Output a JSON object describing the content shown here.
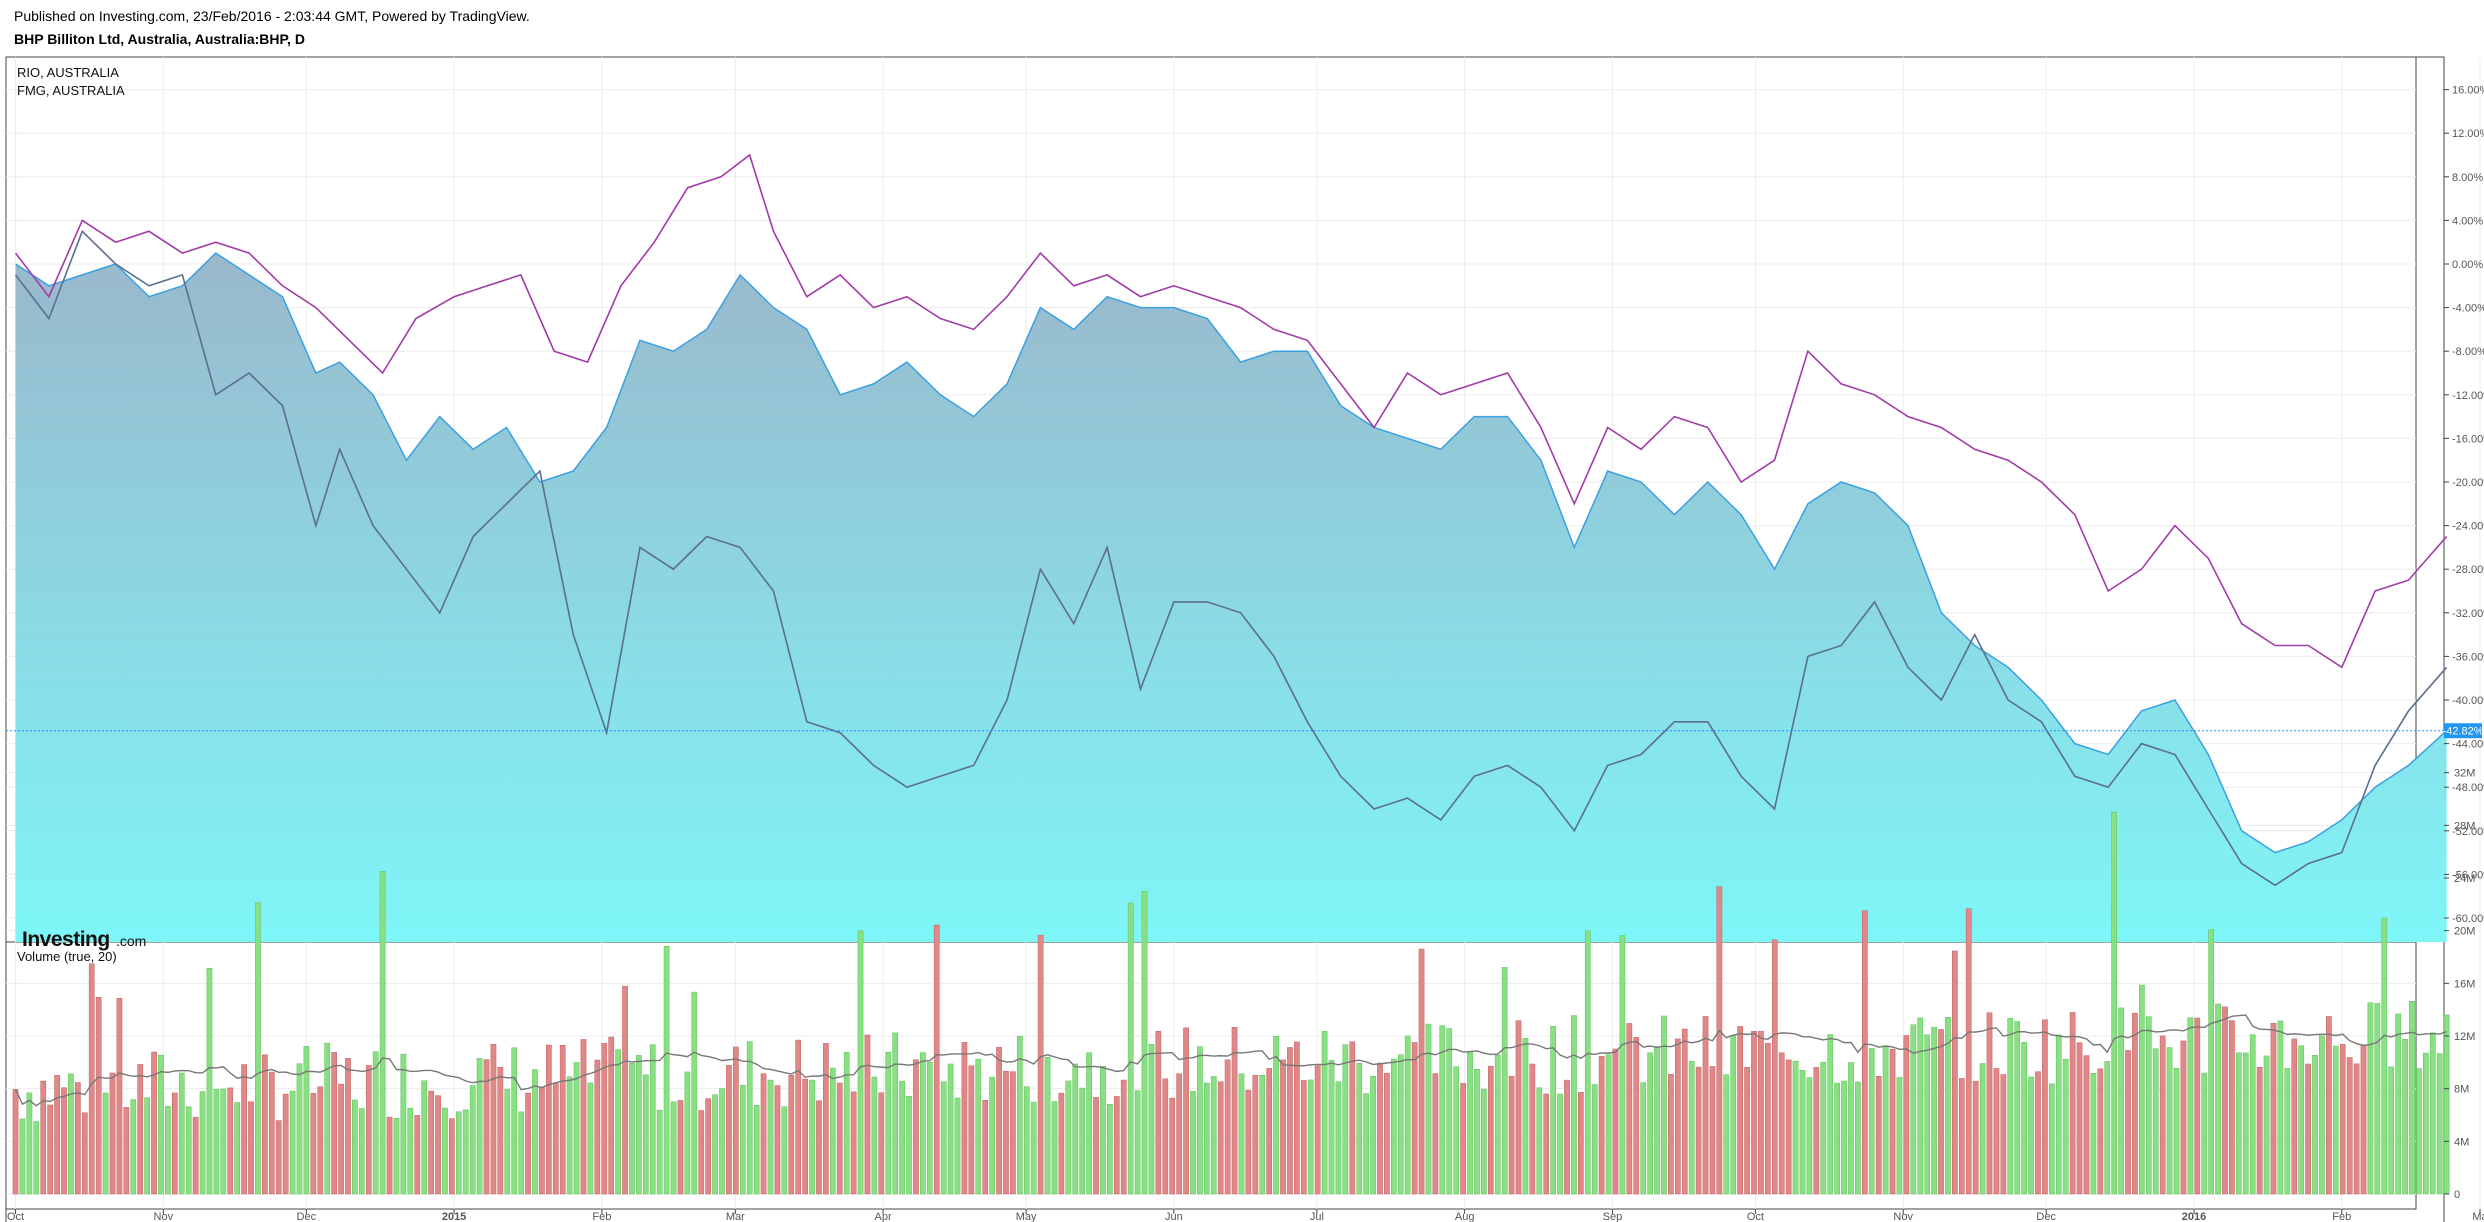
{
  "header": {
    "published": "Published on Investing.com, 23/Feb/2016 - 2:03:44 GMT, Powered by TradingView.",
    "symbol": "BHP Billiton Ltd, Australia, Australia:BHP, D"
  },
  "logo": {
    "main": "Investing",
    "suffix": ".com"
  },
  "price_panel": {
    "legend": [
      "RIO, AUSTRALIA",
      "FMG, AUSTRALIA"
    ],
    "y_ticks": [
      "16.00%",
      "12.00%",
      "8.00%",
      "4.00%",
      "0.00%",
      "-4.00%",
      "-8.00%",
      "-12.00%",
      "-16.00%",
      "-20.00%",
      "-24.00%",
      "-28.00%",
      "-32.00%",
      "-36.00%",
      "-40.00%",
      "-44.00%",
      "-48.00%",
      "-52.00%",
      "-56.00%",
      "-60.00%"
    ],
    "last_value_label": "-42.82%"
  },
  "volume_panel": {
    "title": "Volume (true, 20)",
    "y_ticks": [
      "32M",
      "28M",
      "24M",
      "20M",
      "16M",
      "12M",
      "8M",
      "4M",
      "0"
    ]
  },
  "x_ticks": [
    "Oct",
    "Nov",
    "Dec",
    "2015",
    "Feb",
    "Mar",
    "Apr",
    "May",
    "Jun",
    "Jul",
    "Aug",
    "Sep",
    "Oct",
    "Nov",
    "Dec",
    "2016",
    "Feb",
    "Ma"
  ],
  "colors": {
    "area_line": "#3aa0e0",
    "area_top": "#9ab8cc",
    "area_bottom": "#7ef6f8",
    "rio": "#a23aa8",
    "fmg": "#5a6f8c",
    "vol_up": "#88e082",
    "vol_down": "#e08888",
    "vol_ma": "#777777",
    "grid": "#ececec",
    "price_line": "#2196f3"
  },
  "chart_data": [
    {
      "type": "area",
      "yunit": "%",
      "ylim": [
        -62,
        18
      ],
      "x": [
        "2014-10-01",
        "2014-11-01",
        "2014-12-01",
        "2015-01-01",
        "2015-02-01",
        "2015-03-01",
        "2015-04-01",
        "2015-05-01",
        "2015-06-01",
        "2015-07-01",
        "2015-08-01",
        "2015-09-01",
        "2015-10-01",
        "2015-11-01",
        "2015-12-01",
        "2016-01-01",
        "2016-02-01",
        "2016-03-01"
      ],
      "series": [
        {
          "name": "",
          "points": [
            [
              "2014-10-01",
              0
            ],
            [
              "2014-10-08",
              -2
            ],
            [
              "2014-10-15",
              -1
            ],
            [
              "2014-10-22",
              0
            ],
            [
              "2014-10-29",
              -3
            ],
            [
              "2014-11-05",
              -2
            ],
            [
              "2014-11-12",
              1
            ],
            [
              "2014-11-19",
              -1
            ],
            [
              "2014-11-26",
              -3
            ],
            [
              "2014-12-03",
              -10
            ],
            [
              "2014-12-08",
              -9
            ],
            [
              "2014-12-15",
              -12
            ],
            [
              "2014-12-22",
              -18
            ],
            [
              "2014-12-29",
              -14
            ],
            [
              "2015-01-05",
              -17
            ],
            [
              "2015-01-12",
              -15
            ],
            [
              "2015-01-19",
              -20
            ],
            [
              "2015-01-26",
              -19
            ],
            [
              "2015-02-02",
              -15
            ],
            [
              "2015-02-09",
              -7
            ],
            [
              "2015-02-16",
              -8
            ],
            [
              "2015-02-23",
              -6
            ],
            [
              "2015-03-02",
              -1
            ],
            [
              "2015-03-09",
              -4
            ],
            [
              "2015-03-16",
              -6
            ],
            [
              "2015-03-23",
              -12
            ],
            [
              "2015-03-30",
              -11
            ],
            [
              "2015-04-06",
              -9
            ],
            [
              "2015-04-13",
              -12
            ],
            [
              "2015-04-20",
              -14
            ],
            [
              "2015-04-27",
              -11
            ],
            [
              "2015-05-04",
              -4
            ],
            [
              "2015-05-11",
              -6
            ],
            [
              "2015-05-18",
              -3
            ],
            [
              "2015-05-25",
              -4
            ],
            [
              "2015-06-01",
              -4
            ],
            [
              "2015-06-08",
              -5
            ],
            [
              "2015-06-15",
              -9
            ],
            [
              "2015-06-22",
              -8
            ],
            [
              "2015-06-29",
              -8
            ],
            [
              "2015-07-06",
              -13
            ],
            [
              "2015-07-13",
              -15
            ],
            [
              "2015-07-20",
              -16
            ],
            [
              "2015-07-27",
              -17
            ],
            [
              "2015-08-03",
              -14
            ],
            [
              "2015-08-10",
              -14
            ],
            [
              "2015-08-17",
              -18
            ],
            [
              "2015-08-24",
              -26
            ],
            [
              "2015-08-31",
              -19
            ],
            [
              "2015-09-07",
              -20
            ],
            [
              "2015-09-14",
              -23
            ],
            [
              "2015-09-21",
              -20
            ],
            [
              "2015-09-28",
              -23
            ],
            [
              "2015-10-05",
              -28
            ],
            [
              "2015-10-12",
              -22
            ],
            [
              "2015-10-19",
              -20
            ],
            [
              "2015-10-26",
              -21
            ],
            [
              "2015-11-02",
              -24
            ],
            [
              "2015-11-09",
              -32
            ],
            [
              "2015-11-16",
              -35
            ],
            [
              "2015-11-23",
              -37
            ],
            [
              "2015-11-30",
              -40
            ],
            [
              "2015-12-07",
              -44
            ],
            [
              "2015-12-14",
              -45
            ],
            [
              "2015-12-21",
              -41
            ],
            [
              "2015-12-28",
              -40
            ],
            [
              "2016-01-04",
              -45
            ],
            [
              "2016-01-11",
              -52
            ],
            [
              "2016-01-18",
              -54
            ],
            [
              "2016-01-25",
              -53
            ],
            [
              "2016-02-01",
              -51
            ],
            [
              "2016-02-08",
              -48
            ],
            [
              "2016-02-15",
              -46
            ],
            [
              "2016-02-23",
              -42.82
            ]
          ]
        },
        {
          "name": "RIO, AUSTRALIA",
          "points": [
            [
              "2014-10-01",
              1
            ],
            [
              "2014-10-08",
              -3
            ],
            [
              "2014-10-15",
              4
            ],
            [
              "2014-10-22",
              2
            ],
            [
              "2014-10-29",
              3
            ],
            [
              "2014-11-05",
              1
            ],
            [
              "2014-11-12",
              2
            ],
            [
              "2014-11-19",
              1
            ],
            [
              "2014-11-26",
              -2
            ],
            [
              "2014-12-03",
              -4
            ],
            [
              "2014-12-10",
              -7
            ],
            [
              "2014-12-17",
              -10
            ],
            [
              "2014-12-24",
              -5
            ],
            [
              "2015-01-01",
              -3
            ],
            [
              "2015-01-08",
              -2
            ],
            [
              "2015-01-15",
              -1
            ],
            [
              "2015-01-22",
              -8
            ],
            [
              "2015-01-29",
              -9
            ],
            [
              "2015-02-05",
              -2
            ],
            [
              "2015-02-12",
              2
            ],
            [
              "2015-02-19",
              7
            ],
            [
              "2015-02-26",
              8
            ],
            [
              "2015-03-04",
              10
            ],
            [
              "2015-03-09",
              3
            ],
            [
              "2015-03-16",
              -3
            ],
            [
              "2015-03-23",
              -1
            ],
            [
              "2015-03-30",
              -4
            ],
            [
              "2015-04-06",
              -3
            ],
            [
              "2015-04-13",
              -5
            ],
            [
              "2015-04-20",
              -6
            ],
            [
              "2015-04-27",
              -3
            ],
            [
              "2015-05-04",
              1
            ],
            [
              "2015-05-11",
              -2
            ],
            [
              "2015-05-18",
              -1
            ],
            [
              "2015-05-25",
              -3
            ],
            [
              "2015-06-01",
              -2
            ],
            [
              "2015-06-08",
              -3
            ],
            [
              "2015-06-15",
              -4
            ],
            [
              "2015-06-22",
              -6
            ],
            [
              "2015-06-29",
              -7
            ],
            [
              "2015-07-06",
              -11
            ],
            [
              "2015-07-13",
              -15
            ],
            [
              "2015-07-20",
              -10
            ],
            [
              "2015-07-27",
              -12
            ],
            [
              "2015-08-03",
              -11
            ],
            [
              "2015-08-10",
              -10
            ],
            [
              "2015-08-17",
              -15
            ],
            [
              "2015-08-24",
              -22
            ],
            [
              "2015-08-31",
              -15
            ],
            [
              "2015-09-07",
              -17
            ],
            [
              "2015-09-14",
              -14
            ],
            [
              "2015-09-21",
              -15
            ],
            [
              "2015-09-28",
              -20
            ],
            [
              "2015-10-05",
              -18
            ],
            [
              "2015-10-12",
              -8
            ],
            [
              "2015-10-19",
              -11
            ],
            [
              "2015-10-26",
              -12
            ],
            [
              "2015-11-02",
              -14
            ],
            [
              "2015-11-09",
              -15
            ],
            [
              "2015-11-16",
              -17
            ],
            [
              "2015-11-23",
              -18
            ],
            [
              "2015-11-30",
              -20
            ],
            [
              "2015-12-07",
              -23
            ],
            [
              "2015-12-14",
              -30
            ],
            [
              "2015-12-21",
              -28
            ],
            [
              "2015-12-28",
              -24
            ],
            [
              "2016-01-04",
              -27
            ],
            [
              "2016-01-11",
              -33
            ],
            [
              "2016-01-18",
              -35
            ],
            [
              "2016-01-25",
              -35
            ],
            [
              "2016-02-01",
              -37
            ],
            [
              "2016-02-08",
              -30
            ],
            [
              "2016-02-15",
              -29
            ],
            [
              "2016-02-23",
              -25
            ]
          ]
        },
        {
          "name": "FMG, AUSTRALIA",
          "points": [
            [
              "2014-10-01",
              -1
            ],
            [
              "2014-10-08",
              -5
            ],
            [
              "2014-10-15",
              3
            ],
            [
              "2014-10-22",
              0
            ],
            [
              "2014-10-29",
              -2
            ],
            [
              "2014-11-05",
              -1
            ],
            [
              "2014-11-12",
              -12
            ],
            [
              "2014-11-19",
              -10
            ],
            [
              "2014-11-26",
              -13
            ],
            [
              "2014-12-03",
              -24
            ],
            [
              "2014-12-08",
              -17
            ],
            [
              "2014-12-15",
              -24
            ],
            [
              "2014-12-22",
              -28
            ],
            [
              "2014-12-29",
              -32
            ],
            [
              "2015-01-05",
              -25
            ],
            [
              "2015-01-12",
              -22
            ],
            [
              "2015-01-19",
              -19
            ],
            [
              "2015-01-26",
              -34
            ],
            [
              "2015-02-02",
              -43
            ],
            [
              "2015-02-09",
              -26
            ],
            [
              "2015-02-16",
              -28
            ],
            [
              "2015-02-23",
              -25
            ],
            [
              "2015-03-02",
              -26
            ],
            [
              "2015-03-09",
              -30
            ],
            [
              "2015-03-16",
              -42
            ],
            [
              "2015-03-23",
              -43
            ],
            [
              "2015-03-30",
              -46
            ],
            [
              "2015-04-06",
              -48
            ],
            [
              "2015-04-13",
              -47
            ],
            [
              "2015-04-20",
              -46
            ],
            [
              "2015-04-27",
              -40
            ],
            [
              "2015-05-04",
              -28
            ],
            [
              "2015-05-11",
              -33
            ],
            [
              "2015-05-18",
              -26
            ],
            [
              "2015-05-25",
              -39
            ],
            [
              "2015-06-01",
              -31
            ],
            [
              "2015-06-08",
              -31
            ],
            [
              "2015-06-15",
              -32
            ],
            [
              "2015-06-22",
              -36
            ],
            [
              "2015-06-29",
              -42
            ],
            [
              "2015-07-06",
              -47
            ],
            [
              "2015-07-13",
              -50
            ],
            [
              "2015-07-20",
              -49
            ],
            [
              "2015-07-27",
              -51
            ],
            [
              "2015-08-03",
              -47
            ],
            [
              "2015-08-10",
              -46
            ],
            [
              "2015-08-17",
              -48
            ],
            [
              "2015-08-24",
              -52
            ],
            [
              "2015-08-31",
              -46
            ],
            [
              "2015-09-07",
              -45
            ],
            [
              "2015-09-14",
              -42
            ],
            [
              "2015-09-21",
              -42
            ],
            [
              "2015-09-28",
              -47
            ],
            [
              "2015-10-05",
              -50
            ],
            [
              "2015-10-12",
              -36
            ],
            [
              "2015-10-19",
              -35
            ],
            [
              "2015-10-26",
              -31
            ],
            [
              "2015-11-02",
              -37
            ],
            [
              "2015-11-09",
              -40
            ],
            [
              "2015-11-16",
              -34
            ],
            [
              "2015-11-23",
              -40
            ],
            [
              "2015-11-30",
              -42
            ],
            [
              "2015-12-07",
              -47
            ],
            [
              "2015-12-14",
              -48
            ],
            [
              "2015-12-21",
              -44
            ],
            [
              "2015-12-28",
              -45
            ],
            [
              "2016-01-04",
              -50
            ],
            [
              "2016-01-11",
              -55
            ],
            [
              "2016-01-18",
              -57
            ],
            [
              "2016-01-25",
              -55
            ],
            [
              "2016-02-01",
              -54
            ],
            [
              "2016-02-08",
              -46
            ],
            [
              "2016-02-15",
              -41
            ],
            [
              "2016-02-23",
              -37
            ]
          ]
        }
      ]
    },
    {
      "type": "bar",
      "title": "Volume (true, 20)",
      "yunit": "M",
      "ylim": [
        0,
        32
      ],
      "x_range": [
        "2014-10-01",
        "2016-02-23"
      ],
      "bar_count": 352,
      "values_note": "",
      "volumes_highlights": [
        [
          "2014-12-17",
          24.5
        ],
        [
          "2015-12-15",
          29
        ],
        [
          "2015-08-27",
          20
        ]
      ],
      "moving_average_range": [
        7,
        13
      ]
    }
  ]
}
